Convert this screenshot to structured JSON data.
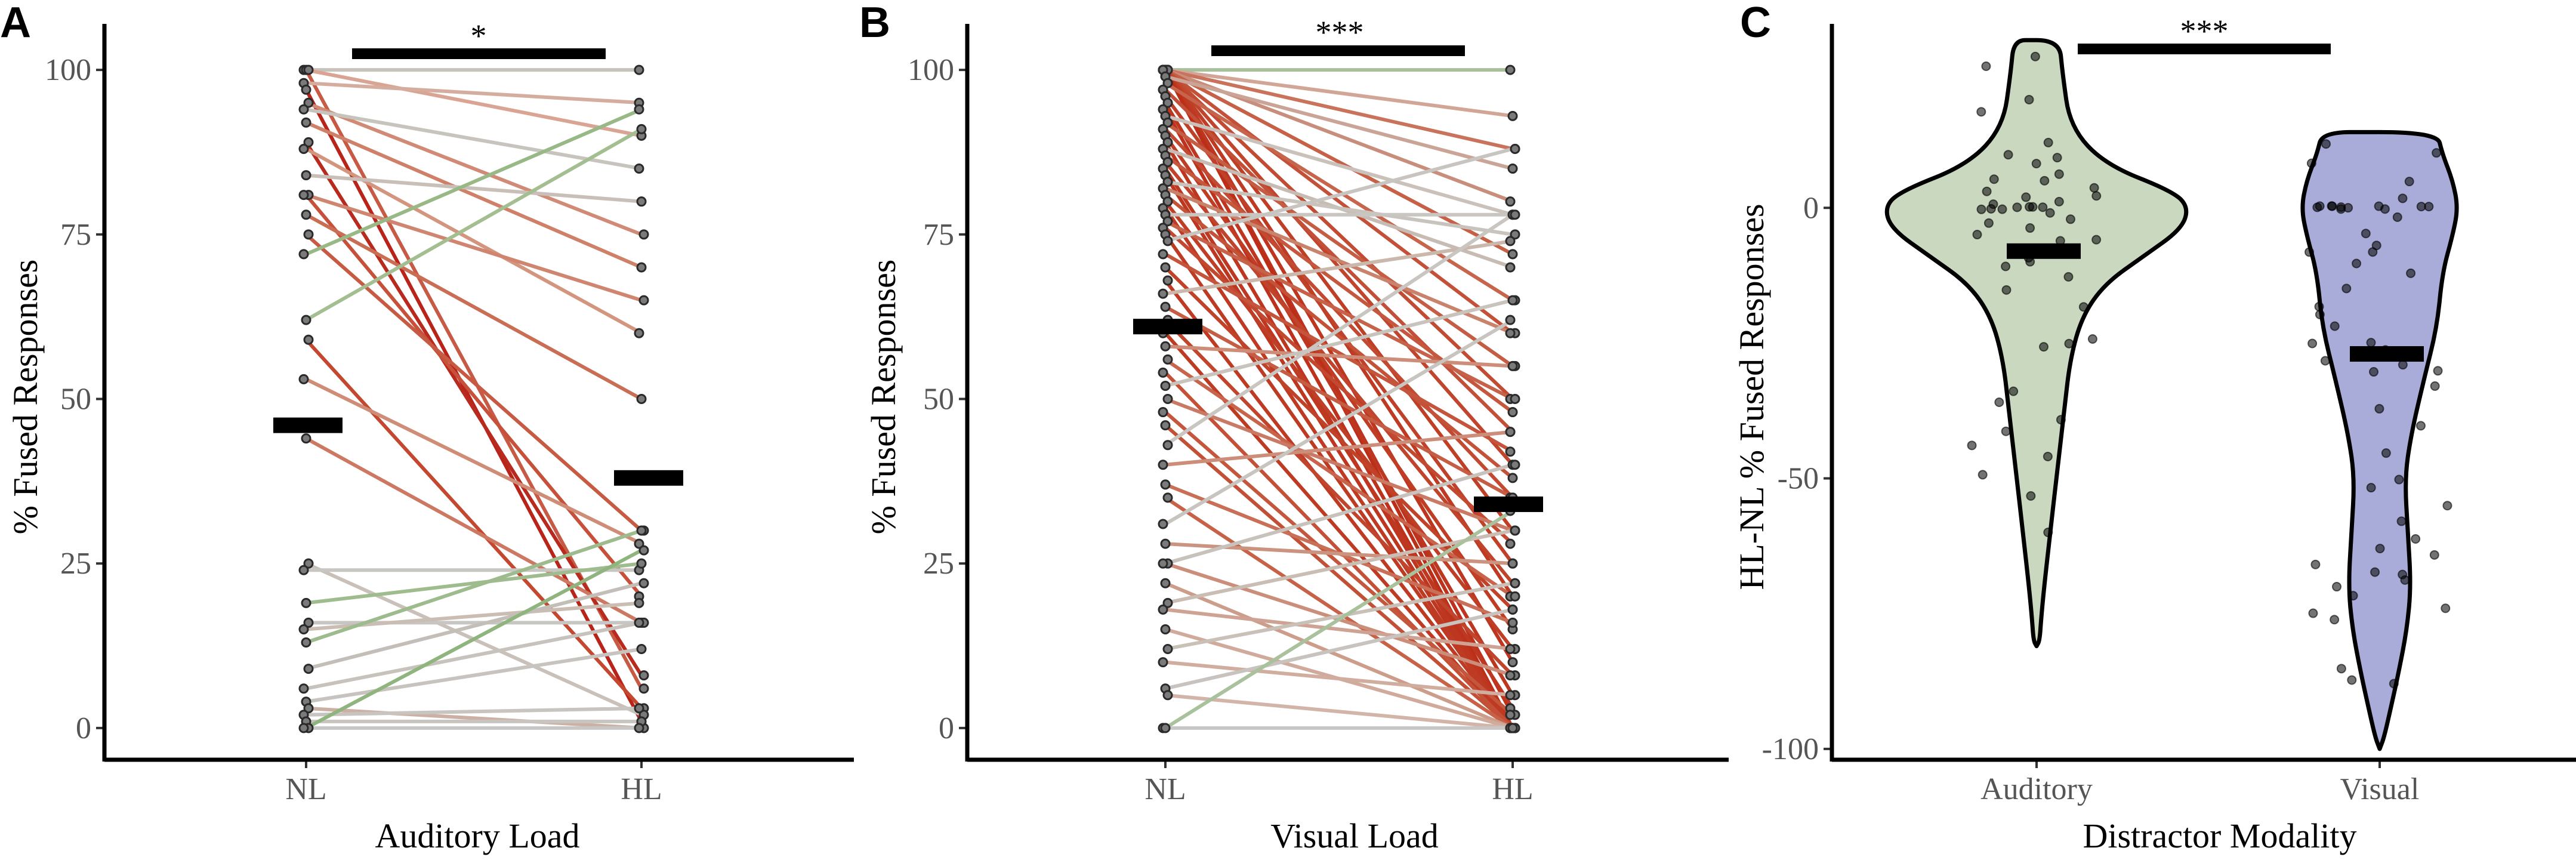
{
  "chart_data": [
    {
      "panel": "A",
      "type": "paired-line",
      "xlabel": "Auditory Load",
      "ylabel": "% Fused Responses",
      "categories": [
        "NL",
        "HL"
      ],
      "ylim": [
        -5,
        105
      ],
      "yticks": [
        0,
        25,
        50,
        75,
        100
      ],
      "ytick_labels": [
        "0",
        "25",
        "50",
        "75",
        "100"
      ],
      "significance": "*",
      "means": [
        46,
        38
      ],
      "pairs": [
        [
          100,
          100
        ],
        [
          100,
          90
        ],
        [
          100,
          6
        ],
        [
          98,
          95
        ],
        [
          97,
          1
        ],
        [
          95,
          75
        ],
        [
          94,
          85
        ],
        [
          92,
          70
        ],
        [
          89,
          8
        ],
        [
          88,
          60
        ],
        [
          84,
          80
        ],
        [
          81,
          65
        ],
        [
          81,
          20
        ],
        [
          78,
          50
        ],
        [
          75,
          30
        ],
        [
          72,
          94
        ],
        [
          62,
          91
        ],
        [
          59,
          3
        ],
        [
          53,
          28
        ],
        [
          44,
          16
        ],
        [
          25,
          2
        ],
        [
          24,
          24
        ],
        [
          19,
          25
        ],
        [
          16,
          16
        ],
        [
          15,
          19
        ],
        [
          13,
          30
        ],
        [
          9,
          22
        ],
        [
          6,
          16
        ],
        [
          4,
          12
        ],
        [
          3,
          0
        ],
        [
          2,
          3
        ],
        [
          1,
          1
        ],
        [
          0,
          27
        ],
        [
          0,
          0
        ]
      ],
      "pair_colors": [
        "#c8c2bd",
        "#d9a493",
        "#c75a45",
        "#d4ad9f",
        "#b8231a",
        "#d18a75",
        "#c7c4be",
        "#cf8069",
        "#b82a1e",
        "#d4957f",
        "#c8c0b8",
        "#d08570",
        "#c6503a",
        "#c96e55",
        "#c65a42",
        "#98b886",
        "#a3bf92",
        "#c3482f",
        "#cf8c77",
        "#cc7862",
        "#c9c1b9",
        "#c8c6c1",
        "#9fbc8f",
        "#c7c6c3",
        "#c9bdb4",
        "#9dbb8c",
        "#c4beb8",
        "#c8c2bc",
        "#c7c4bf",
        "#cdb0a4",
        "#c8c5c1",
        "#c8c5c1",
        "#8fb47e",
        "#c7c7c5"
      ]
    },
    {
      "panel": "B",
      "type": "paired-line",
      "xlabel": "Visual Load",
      "ylabel": "% Fused Responses",
      "categories": [
        "NL",
        "HL"
      ],
      "ylim": [
        -5,
        105
      ],
      "yticks": [
        0,
        25,
        50,
        75,
        100
      ],
      "ytick_labels": [
        "0",
        "25",
        "50",
        "75",
        "100"
      ],
      "significance": "***",
      "means": [
        61,
        34
      ],
      "pairs": [
        [
          100,
          100
        ],
        [
          100,
          93
        ],
        [
          100,
          88
        ],
        [
          100,
          80
        ],
        [
          100,
          72
        ],
        [
          100,
          60
        ],
        [
          100,
          50
        ],
        [
          100,
          40
        ],
        [
          100,
          30
        ],
        [
          100,
          20
        ],
        [
          100,
          10
        ],
        [
          100,
          2
        ],
        [
          100,
          0
        ],
        [
          99,
          85
        ],
        [
          98,
          65
        ],
        [
          97,
          45
        ],
        [
          96,
          25
        ],
        [
          95,
          5
        ],
        [
          94,
          0
        ],
        [
          93,
          78
        ],
        [
          92,
          55
        ],
        [
          91,
          35
        ],
        [
          90,
          15
        ],
        [
          89,
          0
        ],
        [
          88,
          70
        ],
        [
          87,
          48
        ],
        [
          86,
          22
        ],
        [
          85,
          3
        ],
        [
          84,
          0
        ],
        [
          83,
          75
        ],
        [
          82,
          60
        ],
        [
          81,
          38
        ],
        [
          80,
          12
        ],
        [
          79,
          0
        ],
        [
          78,
          78
        ],
        [
          77,
          50
        ],
        [
          76,
          28
        ],
        [
          75,
          0
        ],
        [
          74,
          88
        ],
        [
          72,
          42
        ],
        [
          70,
          18
        ],
        [
          68,
          0
        ],
        [
          66,
          74
        ],
        [
          64,
          35
        ],
        [
          62,
          8
        ],
        [
          60,
          0
        ],
        [
          58,
          55
        ],
        [
          56,
          20
        ],
        [
          54,
          0
        ],
        [
          52,
          65
        ],
        [
          50,
          30
        ],
        [
          48,
          2
        ],
        [
          46,
          0
        ],
        [
          43,
          78
        ],
        [
          40,
          45
        ],
        [
          37,
          16
        ],
        [
          35,
          0
        ],
        [
          31,
          62
        ],
        [
          28,
          25
        ],
        [
          25,
          40
        ],
        [
          25,
          8
        ],
        [
          22,
          0
        ],
        [
          19,
          30
        ],
        [
          18,
          12
        ],
        [
          15,
          0
        ],
        [
          12,
          22
        ],
        [
          10,
          5
        ],
        [
          6,
          18
        ],
        [
          5,
          0
        ],
        [
          0,
          33
        ],
        [
          0,
          0
        ]
      ],
      "pair_colors": [
        "#a8c09b",
        "#d1a697",
        "#c9735c",
        "#c98d7c",
        "#c66148",
        "#c35139",
        "#c24b33",
        "#c1442c",
        "#bf3e26",
        "#be3a22",
        "#bd361f",
        "#bc321c",
        "#bb2f19",
        "#caa496",
        "#c6654c",
        "#c25038",
        "#c04129",
        "#bd3620",
        "#bc321c",
        "#c9c1ba",
        "#c55d44",
        "#c24a32",
        "#bf3d25",
        "#bd3620",
        "#c7bcb3",
        "#c4573e",
        "#c0432b",
        "#bd3721",
        "#bd3620",
        "#c9c3bd",
        "#c9826c",
        "#c35239",
        "#bf3e26",
        "#be3a22",
        "#c9c6c2",
        "#c6614a",
        "#c2492f",
        "#be3b23",
        "#c8c5c1",
        "#c4553c",
        "#c04229",
        "#be3a22",
        "#cbb8ad",
        "#c55d45",
        "#c1452c",
        "#be3b23",
        "#cd8d78",
        "#c8644c",
        "#c35037",
        "#c9c3bd",
        "#ca7a64",
        "#c4563d",
        "#c25036",
        "#c9c5c0",
        "#cc8e7a",
        "#c96f57",
        "#c76147",
        "#c8c4bf",
        "#cb9480",
        "#c8c2bc",
        "#cb8e7a",
        "#cd9d8b",
        "#c9bdb4",
        "#cea393",
        "#d0aa9b",
        "#c9c0b8",
        "#d0ad9f",
        "#c8c3be",
        "#d2b4a8",
        "#a9c19c",
        "#c9c7c5"
      ]
    },
    {
      "panel": "C",
      "type": "violin",
      "xlabel": "Distractor Modality",
      "ylabel": "HL-NL % Fused Responses",
      "categories": [
        "Auditory",
        "Visual"
      ],
      "ylim": [
        -102,
        34
      ],
      "yticks": [
        0,
        -50,
        -100
      ],
      "ytick_labels": [
        "0",
        "-50",
        "-100"
      ],
      "significance": "***",
      "series": [
        {
          "name": "Auditory",
          "color": "#c9d8bf",
          "mean": -8,
          "ymin": -81,
          "ymax": 31,
          "profile": [
            [
              31,
              0.0
            ],
            [
              31,
              0.15
            ],
            [
              25,
              0.17
            ],
            [
              15,
              0.22
            ],
            [
              8,
              0.45
            ],
            [
              3,
              0.9
            ],
            [
              0,
              1.0
            ],
            [
              -4,
              0.95
            ],
            [
              -9,
              0.7
            ],
            [
              -14,
              0.45
            ],
            [
              -20,
              0.3
            ],
            [
              -28,
              0.22
            ],
            [
              -38,
              0.18
            ],
            [
              -50,
              0.13
            ],
            [
              -60,
              0.09
            ],
            [
              -70,
              0.05
            ],
            [
              -76,
              0.03
            ],
            [
              -80,
              0.02
            ],
            [
              -81,
              0.0
            ]
          ],
          "points": [
            28,
            26,
            20,
            18,
            12,
            10,
            9,
            8,
            6,
            5,
            5,
            4,
            3,
            2,
            2,
            1,
            1,
            0,
            0,
            0,
            0,
            0,
            0,
            0,
            -1,
            -2,
            -3,
            -4,
            -5,
            -6,
            -6,
            -8,
            -9,
            -10,
            -11,
            -13,
            -15,
            -18,
            -24,
            -25,
            -26,
            -34,
            -36,
            -39,
            -41,
            -44,
            -46,
            -49,
            -53,
            -60
          ]
        },
        {
          "name": "Visual",
          "color": "#a9acd8",
          "mean": -27,
          "ymin": -100,
          "ymax": 14,
          "profile": [
            [
              14,
              0.0
            ],
            [
              14,
              0.55
            ],
            [
              10,
              0.6
            ],
            [
              5,
              0.7
            ],
            [
              0,
              0.75
            ],
            [
              -5,
              0.7
            ],
            [
              -12,
              0.6
            ],
            [
              -22,
              0.55
            ],
            [
              -32,
              0.42
            ],
            [
              -42,
              0.3
            ],
            [
              -50,
              0.24
            ],
            [
              -60,
              0.27
            ],
            [
              -70,
              0.3
            ],
            [
              -78,
              0.26
            ],
            [
              -86,
              0.18
            ],
            [
              -93,
              0.1
            ],
            [
              -98,
              0.04
            ],
            [
              -100,
              0.0
            ]
          ],
          "points": [
            12,
            10,
            8,
            5,
            2,
            0,
            0,
            0,
            0,
            0,
            0,
            0,
            0,
            0,
            0,
            0,
            -2,
            -5,
            -7,
            -8,
            -8,
            -10,
            -12,
            -15,
            -18,
            -20,
            -22,
            -25,
            -25,
            -26,
            -27,
            -28,
            -29,
            -30,
            -30,
            -33,
            -37,
            -40,
            -45,
            -50,
            -52,
            -55,
            -58,
            -61,
            -63,
            -64,
            -66,
            -67,
            -68,
            -69,
            -70,
            -72,
            -74,
            -75,
            -76,
            -85,
            -87,
            -88
          ]
        }
      ]
    }
  ]
}
